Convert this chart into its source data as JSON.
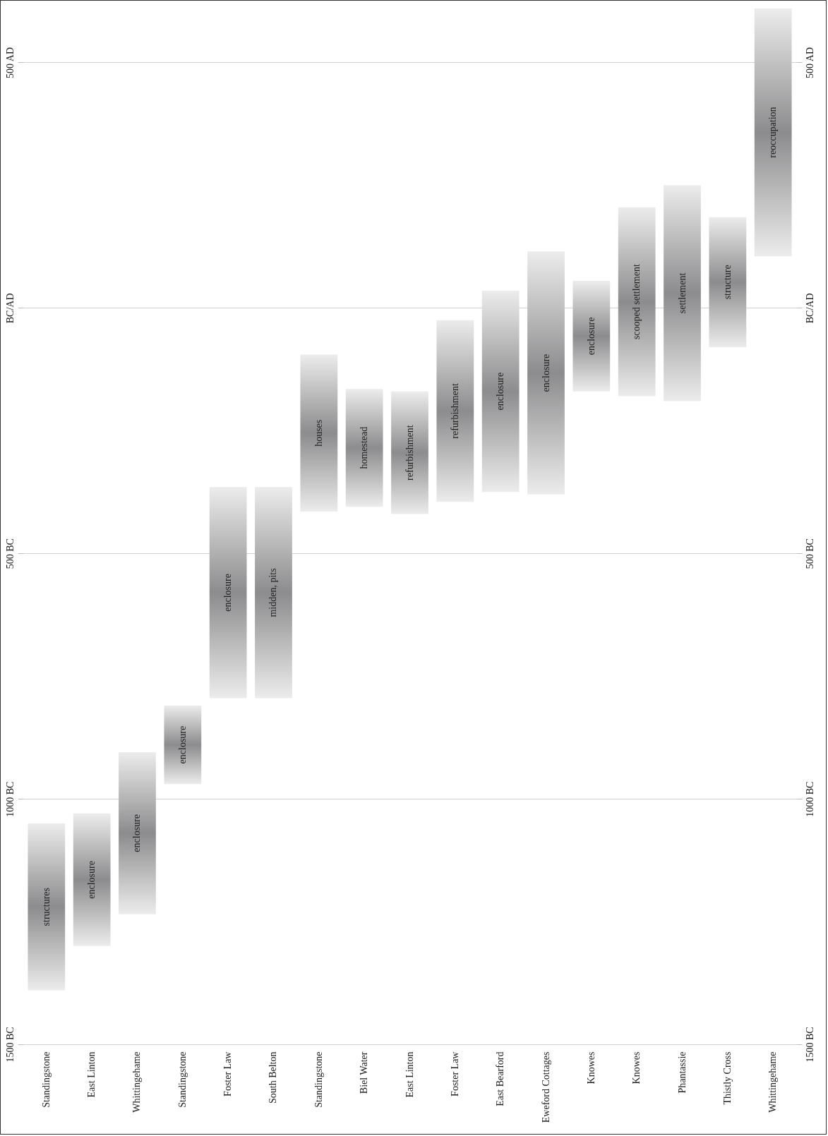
{
  "chart_data": {
    "type": "bar",
    "categories": [
      "Standingstone",
      "East Linton",
      "Whittingehame",
      "Standingstone",
      "Foster Law",
      "South Belton",
      "Standingstone",
      "Biel Water",
      "East Linton",
      "Foster Law",
      "East Bearford",
      "Eweford Cottages",
      "Knowes",
      "Knowes",
      "Phantassie",
      "Thistly Cross",
      "Whittingehame"
    ],
    "series": [
      {
        "color": "#8c8c8e",
        "base": [
          -1390,
          -1300,
          -1235,
          -970,
          -795,
          -795,
          -415,
          -405,
          -420,
          -395,
          -375,
          -380,
          -170,
          -180,
          -190,
          -80,
          105
        ],
        "values": [
          340,
          270,
          330,
          160,
          430,
          430,
          320,
          240,
          250,
          370,
          410,
          495,
          225,
          385,
          440,
          265,
          505
        ],
        "value_labels": [
          "structures",
          "enclosure",
          "enclosure",
          "enclosure",
          "enclosure",
          "midden, pits",
          "houses",
          "homestead",
          "refurbishment",
          "refurbishment",
          "enclosure",
          "enclosure",
          "enclosure",
          "scooped settlement",
          "settlement",
          "structure",
          "reoccupation"
        ]
      }
    ],
    "ylim": [
      -1500,
      620
    ],
    "yticks": [
      {
        "value": -1500,
        "label": "1500 BC"
      },
      {
        "value": -1000,
        "label": "1000 BC"
      },
      {
        "value": -500,
        "label": "500 BC"
      },
      {
        "value": 0,
        "label": "BC/AD"
      },
      {
        "value": 500,
        "label": "500 AD"
      }
    ],
    "y2lim": [
      -1500,
      620
    ],
    "y2ticks": [
      {
        "value": -1500,
        "label": "1500 BC"
      },
      {
        "value": -1000,
        "label": "1000 BC"
      },
      {
        "value": -500,
        "label": "500 BC"
      },
      {
        "value": 0,
        "label": "BC/AD"
      },
      {
        "value": 500,
        "label": "500 AD"
      }
    ],
    "grid": "y"
  }
}
